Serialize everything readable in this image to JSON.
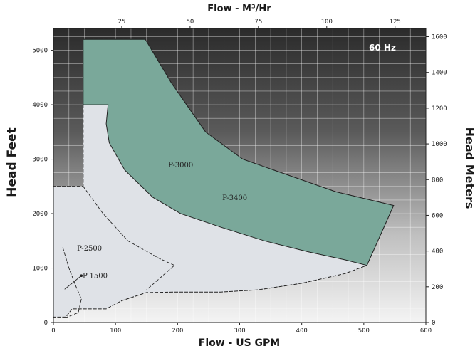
{
  "chart_data": {
    "type": "area",
    "frequency_badge": "60 Hz",
    "xlabel": "Flow - US GPM",
    "x2label": "Flow - M³/Hr",
    "ylabel": "Head Feet",
    "y2label": "Head Meters",
    "xlim": [
      0,
      600
    ],
    "ylim": [
      0,
      5400
    ],
    "x_ticks": [
      0,
      100,
      200,
      300,
      400,
      500,
      600
    ],
    "y_ticks": [
      0,
      1000,
      2000,
      3000,
      4000,
      5000
    ],
    "x2_ticks": [
      25,
      50,
      75,
      100,
      125
    ],
    "y2_ticks": [
      0,
      200,
      400,
      600,
      800,
      1000,
      1200,
      1400,
      1600
    ],
    "grid": true,
    "colors": {
      "P-3400": "#7aa89a",
      "envelope": "#dfe2e7",
      "outline": "#222222"
    },
    "regions": [
      {
        "name": "P-3000",
        "label_at": [
          185,
          2850
        ],
        "fill": "envelope",
        "points": [
          [
            0,
            2500
          ],
          [
            0,
            100
          ],
          [
            20,
            100
          ],
          [
            30,
            250
          ],
          [
            85,
            250
          ],
          [
            110,
            400
          ],
          [
            150,
            550
          ],
          [
            200,
            560
          ],
          [
            270,
            560
          ],
          [
            330,
            600
          ],
          [
            400,
            720
          ],
          [
            470,
            900
          ],
          [
            505,
            1050
          ],
          [
            548,
            2150
          ],
          [
            455,
            2400
          ],
          [
            380,
            2700
          ],
          [
            305,
            3000
          ],
          [
            245,
            3500
          ],
          [
            190,
            4400
          ],
          [
            148,
            5200
          ],
          [
            48,
            5200
          ],
          [
            48,
            2500
          ]
        ]
      },
      {
        "name": "P-3400",
        "label_at": [
          272,
          2250
        ],
        "fill": "P-3400",
        "points": [
          [
            48,
            5200
          ],
          [
            103,
            5200
          ],
          [
            148,
            5200
          ],
          [
            190,
            4400
          ],
          [
            245,
            3500
          ],
          [
            305,
            3000
          ],
          [
            380,
            2700
          ],
          [
            455,
            2400
          ],
          [
            548,
            2150
          ],
          [
            505,
            1050
          ],
          [
            470,
            1150
          ],
          [
            410,
            1300
          ],
          [
            340,
            1500
          ],
          [
            270,
            1750
          ],
          [
            205,
            2000
          ],
          [
            160,
            2300
          ],
          [
            115,
            2800
          ],
          [
            90,
            3300
          ],
          [
            85,
            3650
          ],
          [
            88,
            4000
          ],
          [
            48,
            4000
          ]
        ]
      },
      {
        "name": "P-2500",
        "label_at": [
          38,
          1320
        ],
        "fill": "none",
        "points": [
          [
            48,
            2500
          ],
          [
            80,
            2000
          ],
          [
            120,
            1500
          ],
          [
            170,
            1180
          ],
          [
            195,
            1050
          ],
          [
            175,
            850
          ],
          [
            150,
            600
          ]
        ]
      },
      {
        "name": "P-1500",
        "label_at": [
          47,
          820
        ],
        "fill": "none",
        "points": [
          [
            15,
            1380
          ],
          [
            25,
            1000
          ],
          [
            35,
            700
          ],
          [
            45,
            430
          ],
          [
            40,
            180
          ],
          [
            20,
            90
          ]
        ]
      }
    ],
    "pointer_1500": [
      [
        18,
        610
      ],
      [
        30,
        720
      ],
      [
        45,
        860
      ]
    ]
  }
}
